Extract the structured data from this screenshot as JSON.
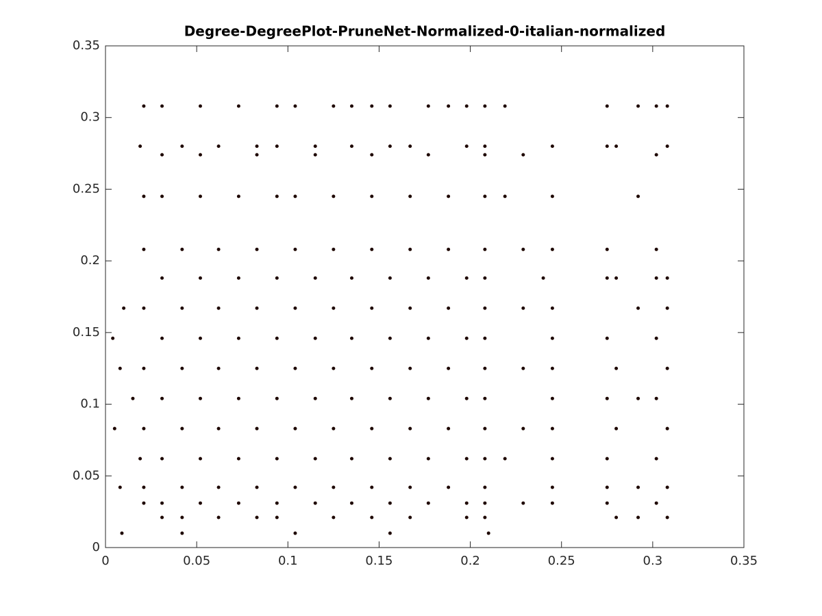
{
  "chart_data": {
    "type": "scatter",
    "title": "Degree-DegreePlot-PruneNet-Normalized-0-italian-normalized",
    "xlim": [
      0,
      0.35
    ],
    "ylim": [
      0,
      0.35
    ],
    "xticks": [
      0,
      0.05,
      0.1,
      0.15,
      0.2,
      0.25,
      0.3,
      0.35
    ],
    "yticks": [
      0,
      0.05,
      0.1,
      0.15,
      0.2,
      0.25,
      0.3,
      0.35
    ],
    "grid": false,
    "color": "#1e0600",
    "x": [
      0.021,
      0.031,
      0.052,
      0.073,
      0.094,
      0.104,
      0.125,
      0.135,
      0.146,
      0.156,
      0.177,
      0.188,
      0.198,
      0.208,
      0.219,
      0.275,
      0.292,
      0.302,
      0.308,
      0.019,
      0.042,
      0.062,
      0.083,
      0.094,
      0.115,
      0.135,
      0.156,
      0.167,
      0.198,
      0.208,
      0.245,
      0.275,
      0.28,
      0.308,
      0.031,
      0.052,
      0.083,
      0.115,
      0.146,
      0.177,
      0.208,
      0.229,
      0.302,
      0.021,
      0.031,
      0.052,
      0.073,
      0.094,
      0.104,
      0.125,
      0.146,
      0.167,
      0.188,
      0.208,
      0.219,
      0.245,
      0.292,
      0.021,
      0.042,
      0.062,
      0.083,
      0.104,
      0.125,
      0.146,
      0.167,
      0.188,
      0.208,
      0.229,
      0.245,
      0.275,
      0.302,
      0.031,
      0.052,
      0.073,
      0.094,
      0.115,
      0.135,
      0.156,
      0.177,
      0.198,
      0.208,
      0.24,
      0.275,
      0.28,
      0.302,
      0.308,
      0.01,
      0.021,
      0.042,
      0.062,
      0.083,
      0.104,
      0.125,
      0.146,
      0.167,
      0.188,
      0.208,
      0.229,
      0.245,
      0.292,
      0.308,
      0.004,
      0.031,
      0.052,
      0.073,
      0.094,
      0.115,
      0.135,
      0.156,
      0.177,
      0.198,
      0.208,
      0.245,
      0.275,
      0.302,
      0.008,
      0.021,
      0.042,
      0.062,
      0.083,
      0.104,
      0.125,
      0.146,
      0.167,
      0.188,
      0.208,
      0.229,
      0.245,
      0.28,
      0.308,
      0.015,
      0.031,
      0.052,
      0.073,
      0.094,
      0.115,
      0.135,
      0.156,
      0.177,
      0.198,
      0.208,
      0.245,
      0.275,
      0.292,
      0.302,
      0.005,
      0.021,
      0.042,
      0.062,
      0.083,
      0.104,
      0.125,
      0.146,
      0.167,
      0.188,
      0.208,
      0.229,
      0.245,
      0.28,
      0.308,
      0.019,
      0.031,
      0.052,
      0.073,
      0.094,
      0.115,
      0.135,
      0.156,
      0.177,
      0.198,
      0.208,
      0.219,
      0.245,
      0.275,
      0.302,
      0.008,
      0.021,
      0.042,
      0.062,
      0.083,
      0.104,
      0.125,
      0.146,
      0.167,
      0.188,
      0.208,
      0.245,
      0.275,
      0.292,
      0.308,
      0.021,
      0.031,
      0.052,
      0.073,
      0.094,
      0.115,
      0.135,
      0.156,
      0.177,
      0.198,
      0.208,
      0.229,
      0.245,
      0.275,
      0.302,
      0.031,
      0.042,
      0.062,
      0.083,
      0.094,
      0.125,
      0.146,
      0.167,
      0.198,
      0.208,
      0.28,
      0.292,
      0.308,
      0.009,
      0.042,
      0.104,
      0.156,
      0.21
    ],
    "values": [
      0.308,
      0.308,
      0.308,
      0.308,
      0.308,
      0.308,
      0.308,
      0.308,
      0.308,
      0.308,
      0.308,
      0.308,
      0.308,
      0.308,
      0.308,
      0.308,
      0.308,
      0.308,
      0.308,
      0.28,
      0.28,
      0.28,
      0.28,
      0.28,
      0.28,
      0.28,
      0.28,
      0.28,
      0.28,
      0.28,
      0.28,
      0.28,
      0.28,
      0.28,
      0.274,
      0.274,
      0.274,
      0.274,
      0.274,
      0.274,
      0.274,
      0.274,
      0.274,
      0.245,
      0.245,
      0.245,
      0.245,
      0.245,
      0.245,
      0.245,
      0.245,
      0.245,
      0.245,
      0.245,
      0.245,
      0.245,
      0.245,
      0.208,
      0.208,
      0.208,
      0.208,
      0.208,
      0.208,
      0.208,
      0.208,
      0.208,
      0.208,
      0.208,
      0.208,
      0.208,
      0.208,
      0.188,
      0.188,
      0.188,
      0.188,
      0.188,
      0.188,
      0.188,
      0.188,
      0.188,
      0.188,
      0.188,
      0.188,
      0.188,
      0.188,
      0.188,
      0.167,
      0.167,
      0.167,
      0.167,
      0.167,
      0.167,
      0.167,
      0.167,
      0.167,
      0.167,
      0.167,
      0.167,
      0.167,
      0.167,
      0.167,
      0.146,
      0.146,
      0.146,
      0.146,
      0.146,
      0.146,
      0.146,
      0.146,
      0.146,
      0.146,
      0.146,
      0.146,
      0.146,
      0.146,
      0.125,
      0.125,
      0.125,
      0.125,
      0.125,
      0.125,
      0.125,
      0.125,
      0.125,
      0.125,
      0.125,
      0.125,
      0.125,
      0.125,
      0.125,
      0.104,
      0.104,
      0.104,
      0.104,
      0.104,
      0.104,
      0.104,
      0.104,
      0.104,
      0.104,
      0.104,
      0.104,
      0.104,
      0.104,
      0.104,
      0.083,
      0.083,
      0.083,
      0.083,
      0.083,
      0.083,
      0.083,
      0.083,
      0.083,
      0.083,
      0.083,
      0.083,
      0.083,
      0.083,
      0.083,
      0.062,
      0.062,
      0.062,
      0.062,
      0.062,
      0.062,
      0.062,
      0.062,
      0.062,
      0.062,
      0.062,
      0.062,
      0.062,
      0.062,
      0.062,
      0.042,
      0.042,
      0.042,
      0.042,
      0.042,
      0.042,
      0.042,
      0.042,
      0.042,
      0.042,
      0.042,
      0.042,
      0.042,
      0.042,
      0.042,
      0.031,
      0.031,
      0.031,
      0.031,
      0.031,
      0.031,
      0.031,
      0.031,
      0.031,
      0.031,
      0.031,
      0.031,
      0.031,
      0.031,
      0.031,
      0.021,
      0.021,
      0.021,
      0.021,
      0.021,
      0.021,
      0.021,
      0.021,
      0.021,
      0.021,
      0.021,
      0.021,
      0.021,
      0.01,
      0.01,
      0.01,
      0.01,
      0.01
    ]
  }
}
